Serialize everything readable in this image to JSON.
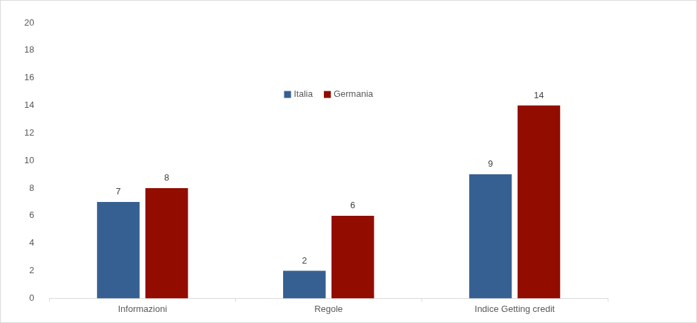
{
  "chart_data": {
    "type": "bar",
    "categories": [
      "Informazioni",
      "Regole",
      "Indice Getting credit"
    ],
    "series": [
      {
        "name": "Italia",
        "color": "#376092",
        "values": [
          7,
          2,
          9
        ]
      },
      {
        "name": "Germania",
        "color": "#920c00",
        "values": [
          8,
          6,
          14
        ]
      }
    ],
    "ylim": [
      0,
      20
    ],
    "yticks": [
      0,
      2,
      4,
      6,
      8,
      10,
      12,
      14,
      16,
      18,
      20
    ],
    "grid": false,
    "legend": "top",
    "data_labels": true
  }
}
